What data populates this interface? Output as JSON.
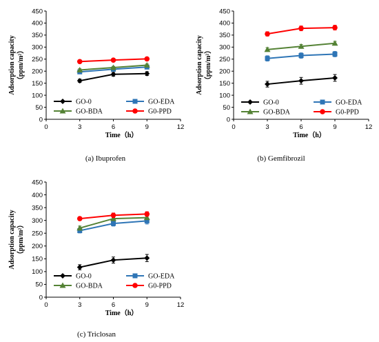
{
  "chart_data": [
    {
      "type": "line",
      "caption": "(a) Ibuprofen",
      "xlabel": "Time（h）",
      "ylabel_line1": "Adsorption capacity",
      "ylabel_line2": "（ppm/m²）",
      "xlim": [
        0,
        12
      ],
      "ylim": [
        0,
        450
      ],
      "xticks": [
        0,
        3,
        6,
        9,
        12
      ],
      "yticks": [
        0,
        50,
        100,
        150,
        200,
        250,
        300,
        350,
        400,
        450
      ],
      "grid": false,
      "legend": "inside-bottom",
      "x": [
        3,
        6,
        9
      ],
      "series": [
        {
          "name": "GO-0",
          "color": "#000000",
          "marker": "diamond",
          "values": [
            160,
            187,
            190
          ],
          "errors": [
            7,
            8,
            8
          ]
        },
        {
          "name": "GO-EDA",
          "color": "#2e75b6",
          "marker": "square",
          "values": [
            197,
            208,
            217
          ],
          "errors": [
            6,
            6,
            6
          ]
        },
        {
          "name": "GO-BDA",
          "color": "#548235",
          "marker": "triangle",
          "values": [
            205,
            215,
            225
          ],
          "errors": [
            5,
            5,
            5
          ]
        },
        {
          "name": "G0-PPD",
          "color": "#ff0000",
          "marker": "circle",
          "values": [
            240,
            246,
            251
          ],
          "errors": [
            5,
            5,
            5
          ]
        }
      ]
    },
    {
      "type": "line",
      "caption": "(b) Gemfibrozil",
      "xlabel": "Time（h）",
      "ylabel_line1": "Adsorption capacity",
      "ylabel_line2": "（ppm/m²）",
      "xlim": [
        0,
        12
      ],
      "ylim": [
        0,
        450
      ],
      "xticks": [
        0,
        3,
        6,
        9,
        12
      ],
      "yticks": [
        0,
        50,
        100,
        150,
        200,
        250,
        300,
        350,
        400,
        450
      ],
      "grid": false,
      "legend": "inside-bottom",
      "x": [
        3,
        6,
        9
      ],
      "series": [
        {
          "name": "GO-0",
          "color": "#000000",
          "marker": "diamond",
          "values": [
            146,
            160,
            172
          ],
          "errors": [
            12,
            14,
            14
          ]
        },
        {
          "name": "GO-EDA",
          "color": "#2e75b6",
          "marker": "square",
          "values": [
            253,
            265,
            271
          ],
          "errors": [
            11,
            11,
            11
          ]
        },
        {
          "name": "GO-BDA",
          "color": "#548235",
          "marker": "triangle",
          "values": [
            290,
            303,
            316
          ],
          "errors": [
            8,
            8,
            8
          ]
        },
        {
          "name": "G0-PPD",
          "color": "#ff0000",
          "marker": "circle",
          "values": [
            355,
            378,
            381
          ],
          "errors": [
            9,
            10,
            10
          ]
        }
      ]
    },
    {
      "type": "line",
      "caption": "(c) Triclosan",
      "xlabel": "Time（h）",
      "ylabel_line1": "Adsorption capacity",
      "ylabel_line2": "（ppm/m²）",
      "xlim": [
        0,
        12
      ],
      "ylim": [
        0,
        450
      ],
      "xticks": [
        0,
        3,
        6,
        9,
        12
      ],
      "yticks": [
        0,
        50,
        100,
        150,
        200,
        250,
        300,
        350,
        400,
        450
      ],
      "grid": false,
      "legend": "inside-bottom",
      "x": [
        3,
        6,
        9
      ],
      "series": [
        {
          "name": "GO-0",
          "color": "#000000",
          "marker": "diamond",
          "values": [
            117,
            145,
            153
          ],
          "errors": [
            10,
            12,
            14
          ]
        },
        {
          "name": "GO-EDA",
          "color": "#2e75b6",
          "marker": "square",
          "values": [
            260,
            288,
            298
          ],
          "errors": [
            9,
            10,
            12
          ]
        },
        {
          "name": "GO-BDA",
          "color": "#548235",
          "marker": "triangle",
          "values": [
            270,
            307,
            311
          ],
          "errors": [
            8,
            8,
            8
          ]
        },
        {
          "name": "G0-PPD",
          "color": "#ff0000",
          "marker": "circle",
          "values": [
            307,
            320,
            325
          ],
          "errors": [
            7,
            9,
            9
          ]
        }
      ]
    }
  ]
}
